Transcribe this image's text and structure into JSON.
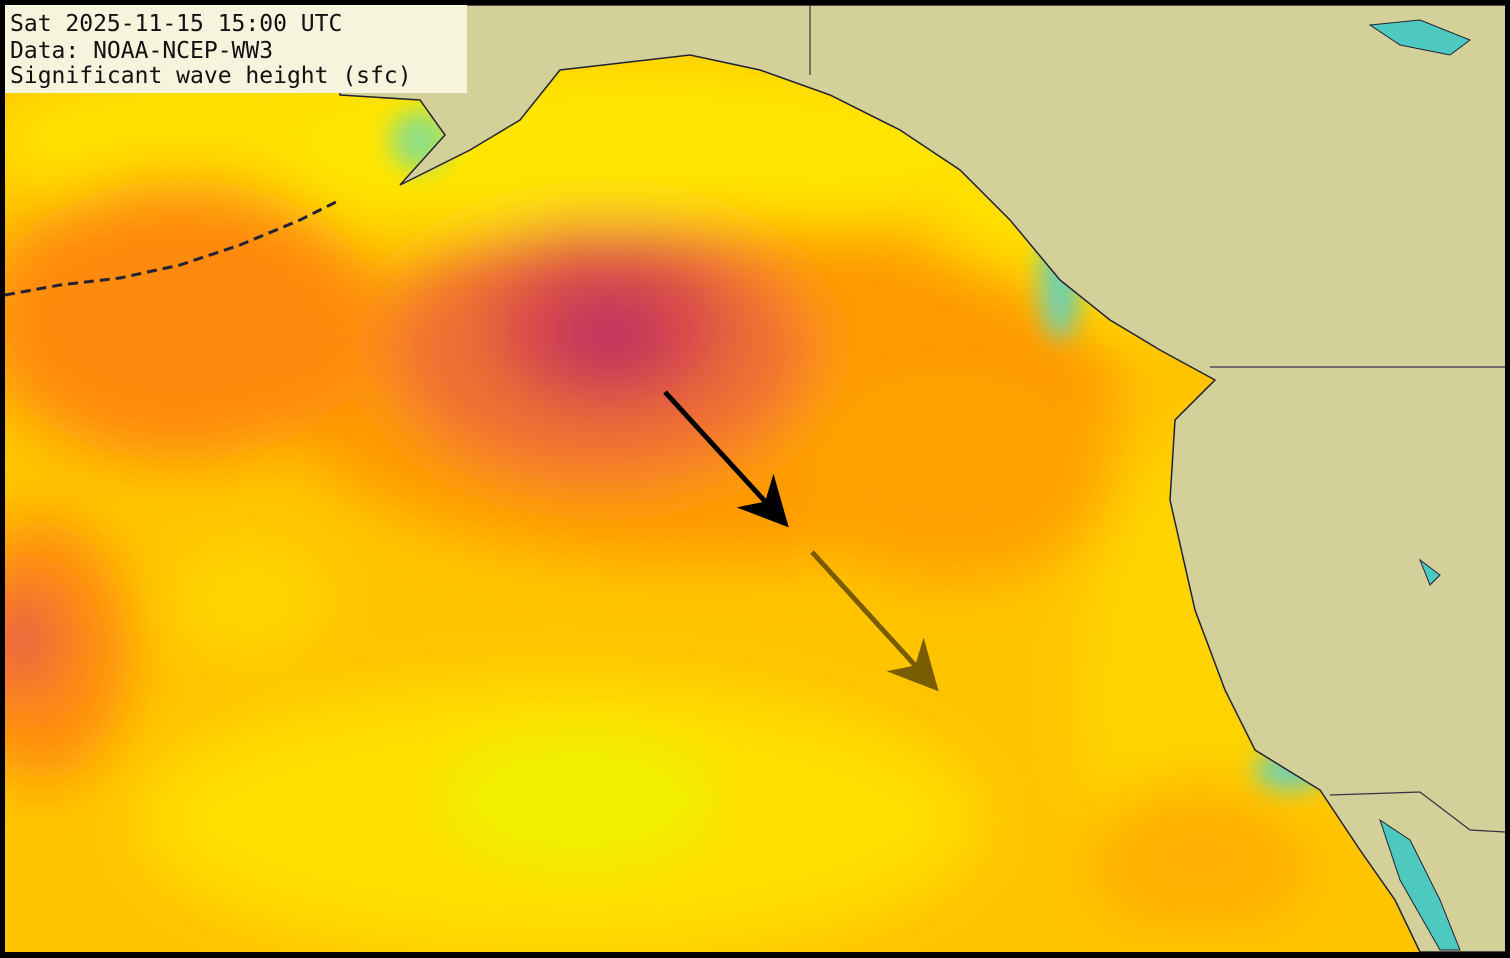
{
  "header": {
    "lines": [
      "Sat 2025-11-15 15:00 UTC",
      "Data: NOAA-NCEP-WW3",
      "Significant wave height (sfc)"
    ]
  }
}
